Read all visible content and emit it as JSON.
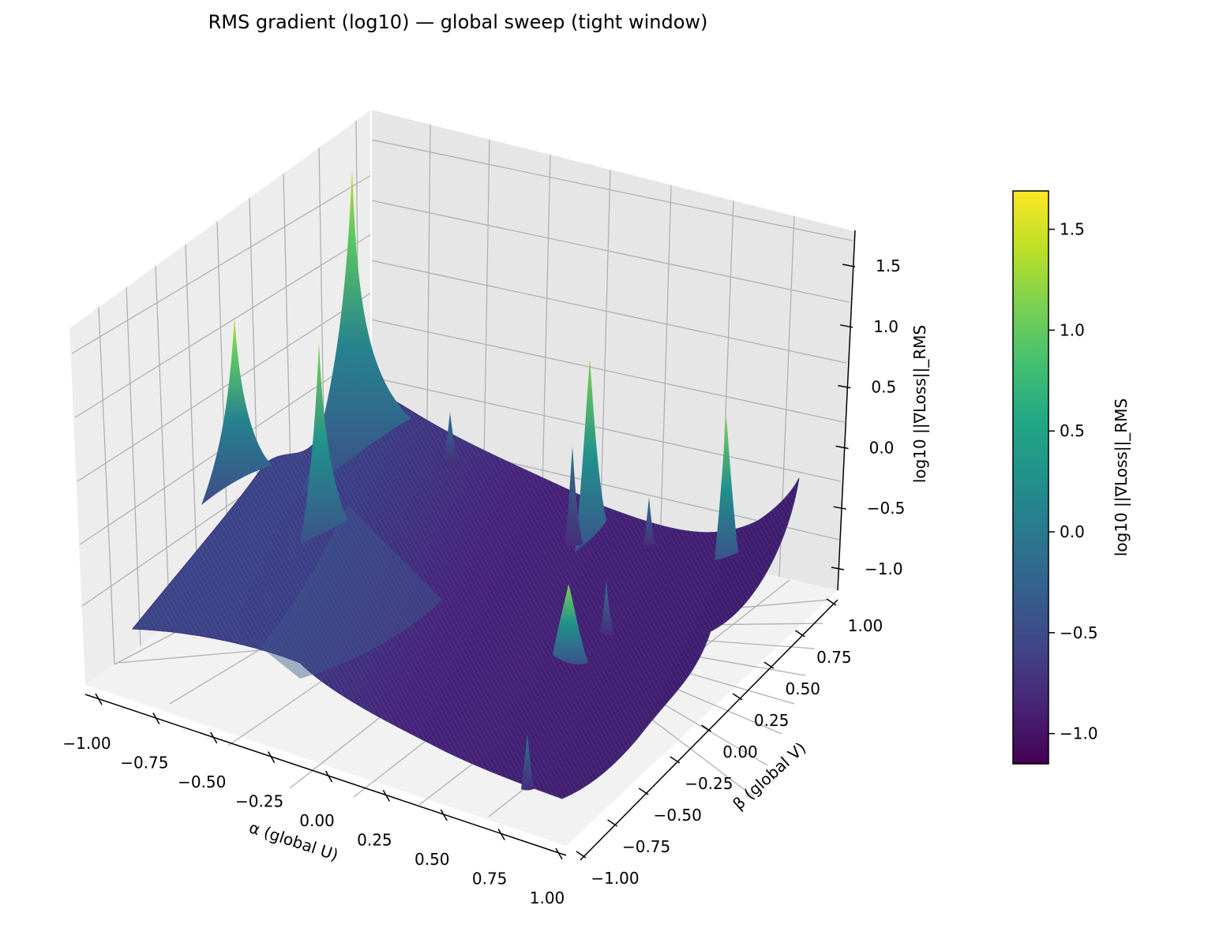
{
  "chart_data": {
    "type": "surface3d",
    "title": "RMS gradient (log10) — global sweep (tight window)",
    "xlabel": "α (global U)",
    "ylabel": "β (global V)",
    "zlabel": "log10 ||∇Loss||_RMS",
    "colorbar_label": "log10 ||∇Loss||_RMS",
    "colormap": "viridis",
    "xlim": [
      -1.0,
      1.0
    ],
    "ylim": [
      -1.0,
      1.0
    ],
    "zlim": [
      -1.2,
      1.7
    ],
    "color_range": [
      -1.15,
      1.69
    ],
    "x_ticks": [
      "−1.00",
      "−0.75",
      "−0.50",
      "−0.25",
      "0.00",
      "0.25",
      "0.50",
      "0.75",
      "1.00"
    ],
    "y_ticks": [
      "−1.00",
      "−0.75",
      "−0.50",
      "−0.25",
      "0.00",
      "0.25",
      "0.50",
      "0.75",
      "1.00"
    ],
    "z_ticks": [
      "−1.0",
      "−0.5",
      "0.0",
      "0.5",
      "1.0",
      "1.5"
    ],
    "colorbar_ticks": [
      "−1.0",
      "−0.5",
      "0.0",
      "0.5",
      "1.0",
      "1.5"
    ],
    "grid": true,
    "legend": "none",
    "surface_profile": {
      "description_points": [
        {
          "alpha": -1.0,
          "beta": -1.0,
          "z": -0.65
        },
        {
          "alpha": -1.0,
          "beta": 1.0,
          "z": -0.3
        },
        {
          "alpha": 1.0,
          "beta": -1.0,
          "z": -1.1
        },
        {
          "alpha": 1.0,
          "beta": 1.0,
          "z": -0.25
        }
      ],
      "spikes": [
        {
          "alpha": -0.55,
          "beta": 0.85,
          "z": 1.69
        },
        {
          "alpha": -0.85,
          "beta": 0.6,
          "z": 1.2
        },
        {
          "alpha": -0.65,
          "beta": 0.35,
          "z": 1.05
        },
        {
          "alpha": 0.45,
          "beta": 0.55,
          "z": 0.35
        },
        {
          "alpha": 0.75,
          "beta": 0.8,
          "z": 0.0
        },
        {
          "alpha": 0.7,
          "beta": 0.2,
          "z": -0.25
        },
        {
          "alpha": -0.2,
          "beta": 0.45,
          "z": -0.3
        }
      ]
    }
  }
}
